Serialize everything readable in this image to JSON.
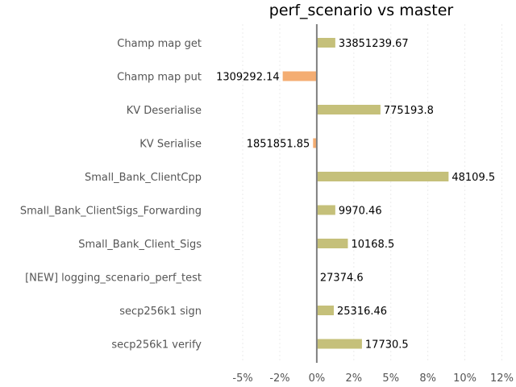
{
  "chart_data": {
    "type": "bar",
    "orientation": "horizontal",
    "title": "perf_scenario vs master",
    "xlabel": "",
    "ylabel": "",
    "x_tick_values": [
      -5,
      -2.5,
      0,
      2.5,
      5,
      7.5,
      10,
      12.5
    ],
    "x_tick_labels": [
      "-5%",
      "-2%",
      "0%",
      "2%",
      "5%",
      "8%",
      "10%",
      "12%"
    ],
    "xlim": [
      -6.8,
      12.8
    ],
    "grid": "vertical, light dashed",
    "colors": {
      "improvement": "#c5c07a",
      "regression": "#f4ad72",
      "zero_line": "#808080"
    },
    "categories": [
      "Champ map get",
      "Champ map put",
      "KV Deserialise",
      "KV Serialise",
      "Small_Bank_ClientCpp",
      "Small_Bank_ClientSigs_Forwarding",
      "Small_Bank_Client_Sigs",
      "[NEW] logging_scenario_perf_test",
      "secp256k1 sign",
      "secp256k1 verify"
    ],
    "values": [
      1.25,
      -2.3,
      4.3,
      -0.25,
      8.9,
      1.25,
      2.1,
      0,
      1.15,
      3.05
    ],
    "value_labels": [
      "33851239.67",
      "1309292.14",
      "775193.8",
      "1851851.85",
      "48109.5",
      "9970.46",
      "10168.5",
      "27374.6",
      "25316.46",
      "17730.5"
    ]
  }
}
